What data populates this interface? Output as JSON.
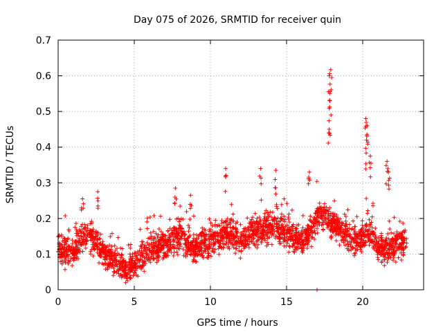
{
  "chart_data": {
    "type": "scatter",
    "title": "Day 075 of 2026, SRMTID for receiver quin",
    "xlabel": "GPS time / hours",
    "ylabel": "SRMTID / TECUs",
    "xlim": [
      0,
      24
    ],
    "ylim": [
      0,
      0.7
    ],
    "xticks": [
      0,
      5,
      10,
      15,
      20
    ],
    "xtick_labels": [
      "0",
      "5",
      "10",
      "15",
      "20"
    ],
    "yticks": [
      0,
      0.1,
      0.2,
      0.3,
      0.4,
      0.5,
      0.6,
      0.7
    ],
    "ytick_labels": [
      "0",
      "0.1",
      "0.2",
      "0.3",
      "0.4",
      "0.5",
      "0.6",
      "0.7"
    ],
    "grid": true,
    "marker": "+",
    "color": "#ff0000",
    "series": [
      {
        "name": "SRMTID",
        "profile_x": [
          0,
          0.5,
          1,
          1.5,
          2,
          2.5,
          3,
          3.5,
          4,
          4.5,
          5,
          5.5,
          6,
          6.5,
          7,
          7.5,
          8,
          8.5,
          9,
          9.5,
          10,
          10.5,
          11,
          11.5,
          12,
          12.5,
          13,
          13.5,
          14,
          14.5,
          15,
          15.5,
          16,
          16.5,
          17,
          17.5,
          18,
          18.5,
          19,
          19.5,
          20,
          20.5,
          21,
          21.5,
          22,
          22.5,
          22.9
        ],
        "profile_y": [
          0.12,
          0.11,
          0.1,
          0.14,
          0.15,
          0.13,
          0.1,
          0.09,
          0.07,
          0.06,
          0.07,
          0.09,
          0.11,
          0.12,
          0.13,
          0.14,
          0.16,
          0.13,
          0.12,
          0.13,
          0.14,
          0.15,
          0.16,
          0.15,
          0.14,
          0.15,
          0.16,
          0.17,
          0.18,
          0.17,
          0.16,
          0.15,
          0.14,
          0.16,
          0.2,
          0.21,
          0.18,
          0.17,
          0.15,
          0.14,
          0.15,
          0.16,
          0.12,
          0.11,
          0.12,
          0.13,
          0.12
        ],
        "spread": 0.06,
        "points_per_hour": 110,
        "peaks": [
          {
            "x": 1.6,
            "y": 0.255
          },
          {
            "x": 2.6,
            "y": 0.275
          },
          {
            "x": 7.7,
            "y": 0.285
          },
          {
            "x": 8.7,
            "y": 0.265
          },
          {
            "x": 11.0,
            "y": 0.34
          },
          {
            "x": 13.3,
            "y": 0.34
          },
          {
            "x": 14.3,
            "y": 0.335
          },
          {
            "x": 16.5,
            "y": 0.33
          },
          {
            "x": 17.8,
            "y": 0.6
          },
          {
            "x": 17.9,
            "y": 0.617
          },
          {
            "x": 17.85,
            "y": 0.53
          },
          {
            "x": 17.8,
            "y": 0.45
          },
          {
            "x": 20.2,
            "y": 0.48
          },
          {
            "x": 20.3,
            "y": 0.46
          },
          {
            "x": 20.25,
            "y": 0.42
          },
          {
            "x": 20.5,
            "y": 0.375
          },
          {
            "x": 21.6,
            "y": 0.36
          },
          {
            "x": 21.7,
            "y": 0.33
          },
          {
            "x": 17.0,
            "y": 0.0
          }
        ]
      }
    ]
  }
}
